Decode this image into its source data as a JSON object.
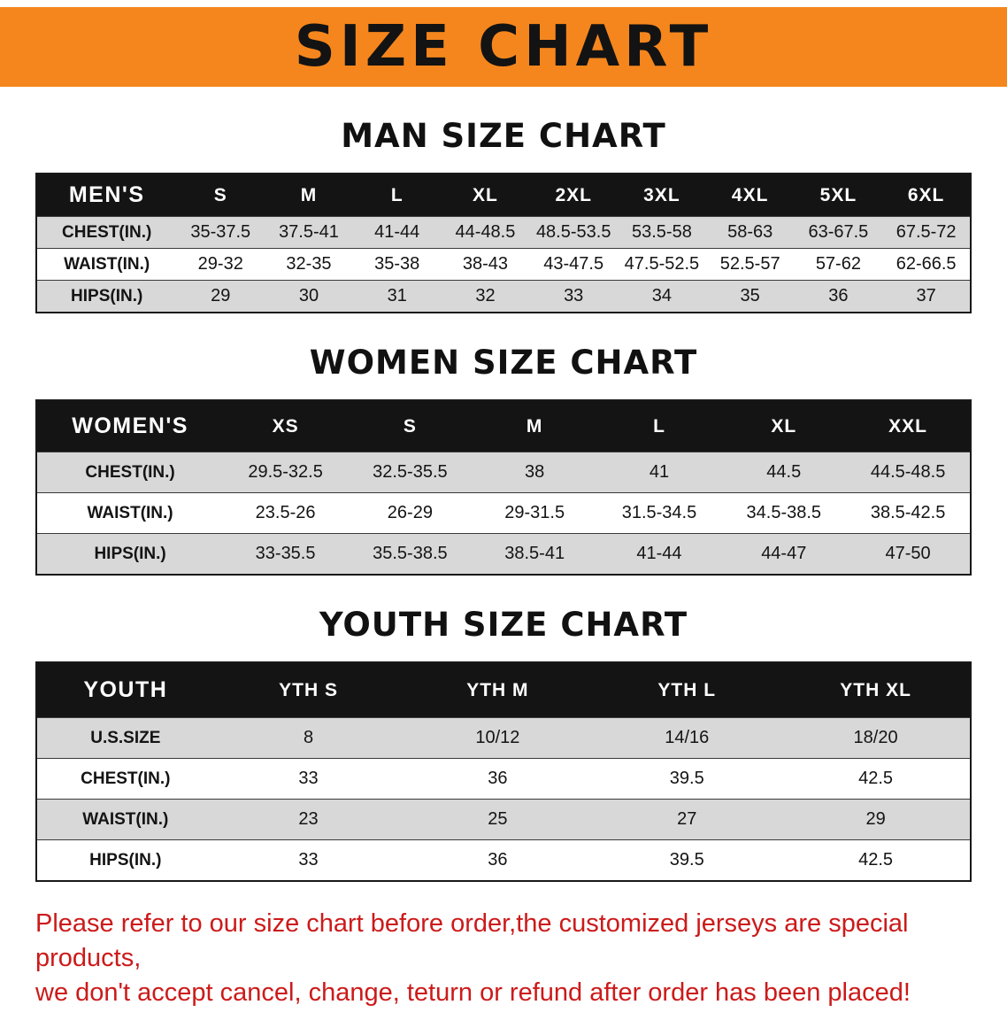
{
  "banner": {
    "title": "SIZE CHART"
  },
  "colors": {
    "banner_bg": "#f5861d",
    "table_header_bg": "#141414",
    "row_alt_bg": "#d8d8d8",
    "footer_text": "#cc1a1a"
  },
  "sections": [
    {
      "id": "men",
      "heading": "MAN SIZE CHART",
      "columns": [
        "MEN'S",
        "S",
        "M",
        "L",
        "XL",
        "2XL",
        "3XL",
        "4XL",
        "5XL",
        "6XL"
      ],
      "rows": [
        [
          "CHEST(IN.)",
          "35-37.5",
          "37.5-41",
          "41-44",
          "44-48.5",
          "48.5-53.5",
          "53.5-58",
          "58-63",
          "63-67.5",
          "67.5-72"
        ],
        [
          "WAIST(IN.)",
          "29-32",
          "32-35",
          "35-38",
          "38-43",
          "43-47.5",
          "47.5-52.5",
          "52.5-57",
          "57-62",
          "62-66.5"
        ],
        [
          "HIPS(IN.)",
          "29",
          "30",
          "31",
          "32",
          "33",
          "34",
          "35",
          "36",
          "37"
        ]
      ]
    },
    {
      "id": "women",
      "heading": "WOMEN SIZE CHART",
      "columns": [
        "WOMEN'S",
        "XS",
        "S",
        "M",
        "L",
        "XL",
        "XXL"
      ],
      "rows": [
        [
          "CHEST(IN.)",
          "29.5-32.5",
          "32.5-35.5",
          "38",
          "41",
          "44.5",
          "44.5-48.5"
        ],
        [
          "WAIST(IN.)",
          "23.5-26",
          "26-29",
          "29-31.5",
          "31.5-34.5",
          "34.5-38.5",
          "38.5-42.5"
        ],
        [
          "HIPS(IN.)",
          "33-35.5",
          "35.5-38.5",
          "38.5-41",
          "41-44",
          "44-47",
          "47-50"
        ]
      ]
    },
    {
      "id": "youth",
      "heading": "YOUTH SIZE CHART",
      "columns": [
        "YOUTH",
        "YTH S",
        "YTH M",
        "YTH L",
        "YTH XL"
      ],
      "rows": [
        [
          "U.S.SIZE",
          "8",
          "10/12",
          "14/16",
          "18/20"
        ],
        [
          "CHEST(IN.)",
          "33",
          "36",
          "39.5",
          "42.5"
        ],
        [
          "WAIST(IN.)",
          "23",
          "25",
          "27",
          "29"
        ],
        [
          "HIPS(IN.)",
          "33",
          "36",
          "39.5",
          "42.5"
        ]
      ]
    }
  ],
  "footer": {
    "lines": [
      "Please refer to our size chart before order,the customized jerseys are special products,",
      "we don't accept cancel, change, teturn or refund after order has been placed!"
    ]
  }
}
